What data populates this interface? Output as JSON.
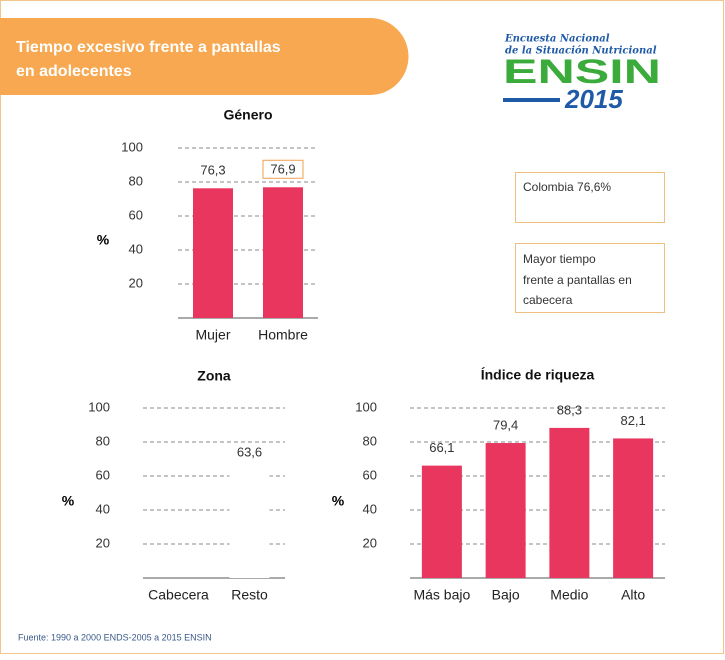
{
  "header": {
    "title_line1": "Tiempo excesivo frente a pantallas",
    "title_line2": "en adolecentes"
  },
  "logo": {
    "line1": "Encuesta Nacional",
    "line2": "de la Situación Nutricional",
    "name": "ENSIN",
    "year": "2015"
  },
  "callouts": {
    "national": "Colombia 76,6%",
    "note_line1": "Mayor  tiempo",
    "note_line2": "frente a pantallas en",
    "note_line3": "cabecera"
  },
  "source": "Fuente: 1990 a 2000 ENDS-2005 a 2015 ENSIN",
  "chart_data": [
    {
      "type": "bar",
      "title": "Género",
      "y_label": "%",
      "categories": [
        "Mujer",
        "Hombre"
      ],
      "values": [
        76.3,
        76.9
      ],
      "value_labels": [
        "76,3",
        "76,9"
      ],
      "color": "#e8365f",
      "ylim": [
        0,
        100
      ],
      "yticks": [
        20,
        40,
        60,
        80,
        100
      ],
      "grid": true
    },
    {
      "type": "bar",
      "title": "Zona",
      "y_label": "%",
      "categories": [
        "Cabecera",
        "Resto"
      ],
      "values": [
        null,
        63.6
      ],
      "value_labels": [
        null,
        "63,6"
      ],
      "color": "#ffffff",
      "ylim": [
        0,
        100
      ],
      "yticks": [
        20,
        40,
        60,
        80,
        100
      ],
      "grid": true
    },
    {
      "type": "bar",
      "title": "Índice de riqueza",
      "y_label": "%",
      "categories": [
        "Más bajo",
        "Bajo",
        "Medio",
        "Alto"
      ],
      "values": [
        66.1,
        79.4,
        88.3,
        82.1
      ],
      "value_labels": [
        "66,1",
        "79,4",
        "88,3",
        "82,1"
      ],
      "color": "#e8365f",
      "ylim": [
        0,
        100
      ],
      "yticks": [
        20,
        40,
        60,
        80,
        100
      ],
      "grid": true
    }
  ]
}
